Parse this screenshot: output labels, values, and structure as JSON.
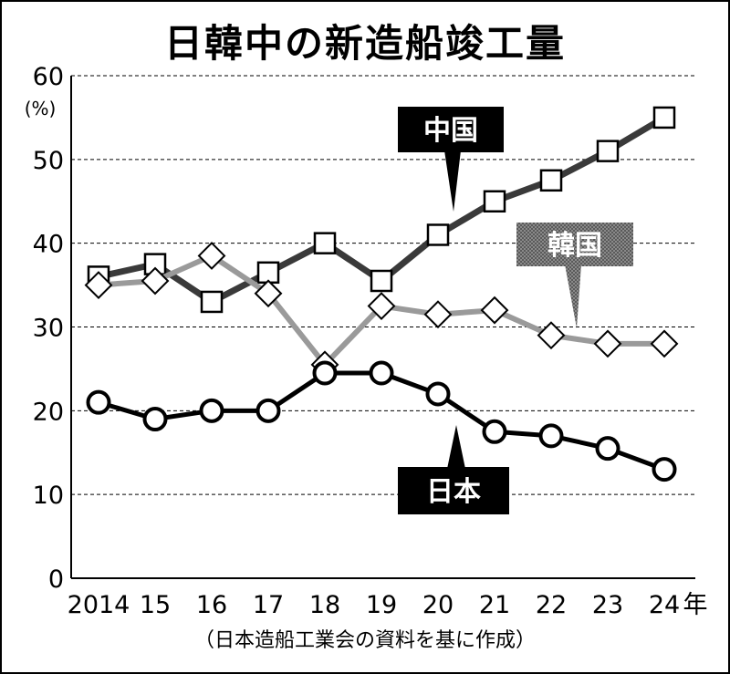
{
  "title": "日韓中の新造船竣工量",
  "source": "（日本造船工業会の資料を基に作成）",
  "colors": {
    "japan": "#000000",
    "china": "#3a3a3a",
    "korea": "#9a9a9a",
    "grid": "#000000"
  },
  "chart_data": {
    "type": "line",
    "title": "日韓中の新造船竣工量",
    "ylabel": "(%)",
    "xlabel": "年",
    "ylim": [
      0,
      60
    ],
    "yticks": [
      0,
      10,
      20,
      30,
      40,
      50,
      60
    ],
    "grid": "horizontal dashed",
    "categories": [
      "2014",
      "15",
      "16",
      "17",
      "18",
      "19",
      "20",
      "21",
      "22",
      "23",
      "24"
    ],
    "x_unit": "年",
    "series": [
      {
        "name": "中国",
        "marker": "square",
        "values": [
          36,
          37.5,
          33,
          36.5,
          40,
          35.5,
          41,
          45,
          47.5,
          51,
          55
        ]
      },
      {
        "name": "韓国",
        "marker": "diamond",
        "values": [
          35,
          35.5,
          38.5,
          34,
          25.5,
          32.5,
          31.5,
          32,
          29,
          28,
          28
        ]
      },
      {
        "name": "日本",
        "marker": "circle",
        "values": [
          21,
          19,
          20,
          20,
          24.5,
          24.5,
          22,
          17.5,
          17,
          15.5,
          13
        ]
      }
    ]
  }
}
